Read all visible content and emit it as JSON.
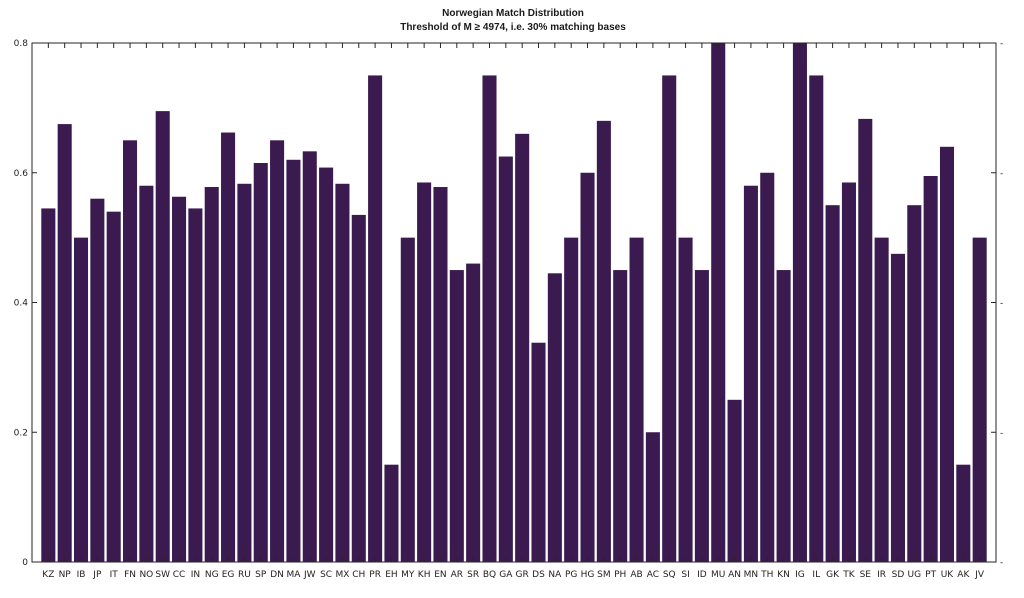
{
  "chart_data": {
    "type": "bar",
    "title": "Norwegian Match Distribution",
    "subtitle": "Threshold of M ≥ 4974, i.e. 30% matching bases",
    "xlabel": "",
    "ylabel": "",
    "ylim": [
      0,
      0.8
    ],
    "yticks": [
      0,
      0.2,
      0.4,
      0.6,
      0.8
    ],
    "ytick_labels": [
      "0",
      "0.2",
      "0.4",
      "0.6",
      "0.8"
    ],
    "grid": false,
    "bar_color": "#3a1a4f",
    "categories": [
      "KZ",
      "NP",
      "IB",
      "JP",
      "IT",
      "FN",
      "NO",
      "SW",
      "CC",
      "IN",
      "NG",
      "EG",
      "RU",
      "SP",
      "DN",
      "MA",
      "JW",
      "SC",
      "MX",
      "CH",
      "PR",
      "EH",
      "MY",
      "KH",
      "EN",
      "AR",
      "SR",
      "BQ",
      "GA",
      "GR",
      "DS",
      "NA",
      "PG",
      "HG",
      "SM",
      "PH",
      "AB",
      "AC",
      "SQ",
      "SI",
      "ID",
      "MU",
      "AN",
      "MN",
      "TH",
      "KN",
      "IG",
      "IL",
      "GK",
      "TK",
      "SE",
      "IR",
      "SD",
      "UG",
      "PT",
      "UK",
      "AK",
      "JV"
    ],
    "values": [
      0.545,
      0.675,
      0.5,
      0.56,
      0.54,
      0.65,
      0.58,
      0.695,
      0.563,
      0.545,
      0.578,
      0.662,
      0.583,
      0.615,
      0.65,
      0.62,
      0.633,
      0.608,
      0.583,
      0.535,
      0.75,
      0.15,
      0.5,
      0.585,
      0.578,
      0.45,
      0.46,
      0.75,
      0.625,
      0.66,
      0.338,
      0.445,
      0.5,
      0.6,
      0.68,
      0.45,
      0.5,
      0.2,
      0.75,
      0.5,
      0.45,
      0.8,
      0.25,
      0.58,
      0.6,
      0.45,
      0.8,
      0.75,
      0.55,
      0.585,
      0.683,
      0.5,
      0.475,
      0.55,
      0.595,
      0.64,
      0.15,
      0.5
    ]
  }
}
